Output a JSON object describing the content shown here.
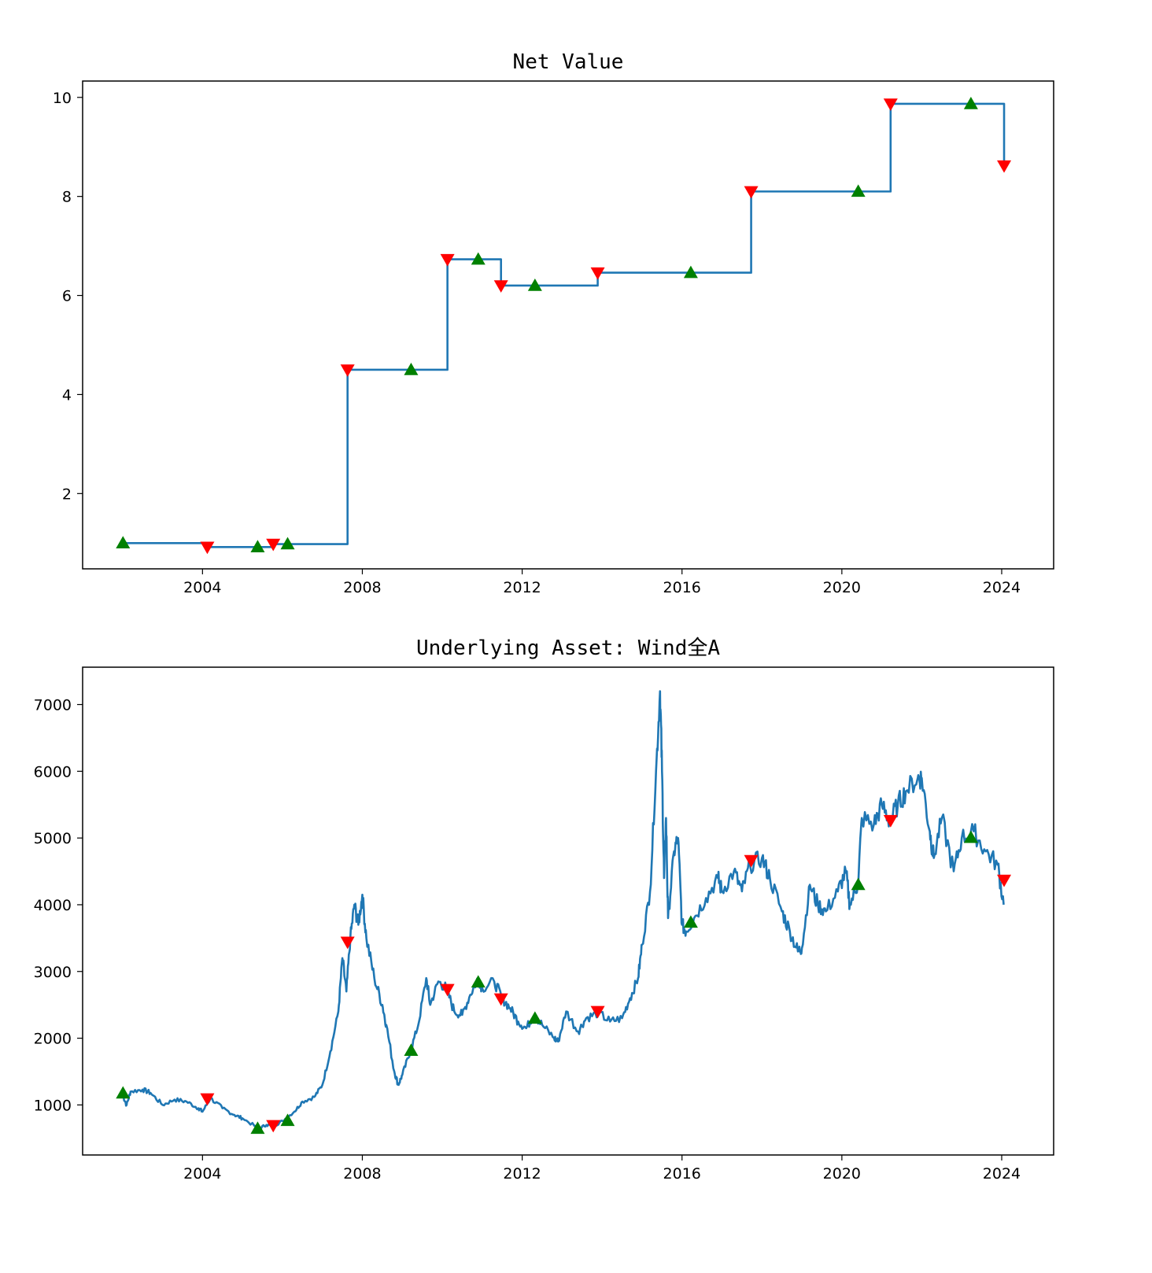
{
  "chart_data": [
    {
      "type": "line",
      "title": "Net Value",
      "xlabel": "",
      "ylabel": "",
      "xlim": [
        2001.0,
        2025.3
      ],
      "ylim": [
        0.48,
        10.33
      ],
      "xticks": [
        2004,
        2008,
        2012,
        2016,
        2020,
        2024
      ],
      "xtick_labels": [
        "2004",
        "2008",
        "2012",
        "2016",
        "2020",
        "2024"
      ],
      "yticks": [
        2,
        4,
        6,
        8,
        10
      ],
      "ytick_labels": [
        "2",
        "4",
        "6",
        "8",
        "10"
      ],
      "line_color": "#1f77b4",
      "drawstyle": "steps-post",
      "points": [
        {
          "x": 2002.01,
          "y": 1.0,
          "signal": "buy"
        },
        {
          "x": 2004.12,
          "y": 0.92,
          "signal": "sell"
        },
        {
          "x": 2005.38,
          "y": 0.92,
          "signal": "buy"
        },
        {
          "x": 2005.77,
          "y": 0.98,
          "signal": "sell"
        },
        {
          "x": 2006.13,
          "y": 0.98,
          "signal": "buy"
        },
        {
          "x": 2007.63,
          "y": 4.5,
          "signal": "sell"
        },
        {
          "x": 2009.22,
          "y": 4.5,
          "signal": "buy"
        },
        {
          "x": 2010.13,
          "y": 6.73,
          "signal": "sell"
        },
        {
          "x": 2010.9,
          "y": 6.73,
          "signal": "buy"
        },
        {
          "x": 2011.47,
          "y": 6.2,
          "signal": "sell"
        },
        {
          "x": 2012.32,
          "y": 6.2,
          "signal": "buy"
        },
        {
          "x": 2013.89,
          "y": 6.46,
          "signal": "sell"
        },
        {
          "x": 2016.22,
          "y": 6.46,
          "signal": "buy"
        },
        {
          "x": 2017.73,
          "y": 8.1,
          "signal": "sell"
        },
        {
          "x": 2020.41,
          "y": 8.1,
          "signal": "buy"
        },
        {
          "x": 2021.22,
          "y": 9.87,
          "signal": "sell"
        },
        {
          "x": 2023.23,
          "y": 9.87,
          "signal": "buy"
        },
        {
          "x": 2024.06,
          "y": 8.62,
          "signal": "sell"
        }
      ],
      "buy_color": "#008000",
      "sell_color": "#ff0000"
    },
    {
      "type": "line",
      "title": "Underlying Asset: Wind全A",
      "xlabel": "",
      "ylabel": "",
      "xlim": [
        2001.0,
        2025.3
      ],
      "ylim": [
        250,
        7560
      ],
      "xticks": [
        2004,
        2008,
        2012,
        2016,
        2020,
        2024
      ],
      "xtick_labels": [
        "2004",
        "2008",
        "2012",
        "2016",
        "2020",
        "2024"
      ],
      "yticks": [
        1000,
        2000,
        3000,
        4000,
        5000,
        6000,
        7000
      ],
      "ytick_labels": [
        "1000",
        "2000",
        "3000",
        "4000",
        "5000",
        "6000",
        "7000"
      ],
      "line_color": "#1f77b4",
      "series": [
        [
          2002.0,
          1150
        ],
        [
          2002.1,
          1000
        ],
        [
          2002.2,
          1200
        ],
        [
          2002.5,
          1230
        ],
        [
          2002.7,
          1180
        ],
        [
          2003.0,
          1000
        ],
        [
          2003.3,
          1080
        ],
        [
          2003.6,
          1050
        ],
        [
          2003.9,
          950
        ],
        [
          2004.0,
          900
        ],
        [
          2004.2,
          1100
        ],
        [
          2004.5,
          950
        ],
        [
          2004.8,
          850
        ],
        [
          2005.0,
          800
        ],
        [
          2005.4,
          650
        ],
        [
          2005.6,
          700
        ],
        [
          2005.8,
          690
        ],
        [
          2006.0,
          760
        ],
        [
          2006.3,
          900
        ],
        [
          2006.5,
          1050
        ],
        [
          2006.8,
          1120
        ],
        [
          2007.0,
          1300
        ],
        [
          2007.2,
          1800
        ],
        [
          2007.4,
          2400
        ],
        [
          2007.5,
          3200
        ],
        [
          2007.6,
          2700
        ],
        [
          2007.7,
          3500
        ],
        [
          2007.8,
          4000
        ],
        [
          2007.9,
          3700
        ],
        [
          2008.0,
          4150
        ],
        [
          2008.1,
          3500
        ],
        [
          2008.3,
          2900
        ],
        [
          2008.5,
          2500
        ],
        [
          2008.6,
          2200
        ],
        [
          2008.8,
          1500
        ],
        [
          2008.9,
          1300
        ],
        [
          2009.0,
          1450
        ],
        [
          2009.2,
          1800
        ],
        [
          2009.4,
          2200
        ],
        [
          2009.6,
          2900
        ],
        [
          2009.7,
          2500
        ],
        [
          2009.9,
          2850
        ],
        [
          2010.1,
          2750
        ],
        [
          2010.3,
          2400
        ],
        [
          2010.5,
          2350
        ],
        [
          2010.7,
          2650
        ],
        [
          2010.9,
          2900
        ],
        [
          2011.0,
          2750
        ],
        [
          2011.3,
          2850
        ],
        [
          2011.5,
          2600
        ],
        [
          2011.7,
          2450
        ],
        [
          2011.9,
          2250
        ],
        [
          2012.1,
          2150
        ],
        [
          2012.3,
          2350
        ],
        [
          2012.5,
          2200
        ],
        [
          2012.8,
          2000
        ],
        [
          2012.9,
          1950
        ],
        [
          2013.1,
          2400
        ],
        [
          2013.4,
          2100
        ],
        [
          2013.6,
          2300
        ],
        [
          2013.9,
          2380
        ],
        [
          2014.2,
          2250
        ],
        [
          2014.5,
          2300
        ],
        [
          2014.7,
          2600
        ],
        [
          2014.9,
          2900
        ],
        [
          2015.0,
          3400
        ],
        [
          2015.2,
          4200
        ],
        [
          2015.35,
          6000
        ],
        [
          2015.45,
          7200
        ],
        [
          2015.5,
          6000
        ],
        [
          2015.55,
          4400
        ],
        [
          2015.6,
          5300
        ],
        [
          2015.65,
          3800
        ],
        [
          2015.8,
          4800
        ],
        [
          2015.9,
          5000
        ],
        [
          2016.0,
          3700
        ],
        [
          2016.1,
          3600
        ],
        [
          2016.3,
          3800
        ],
        [
          2016.6,
          4100
        ],
        [
          2016.9,
          4400
        ],
        [
          2017.0,
          4200
        ],
        [
          2017.3,
          4500
        ],
        [
          2017.5,
          4200
        ],
        [
          2017.7,
          4600
        ],
        [
          2018.0,
          4700
        ],
        [
          2018.2,
          4400
        ],
        [
          2018.5,
          3900
        ],
        [
          2018.7,
          3600
        ],
        [
          2018.9,
          3300
        ],
        [
          2019.0,
          3350
        ],
        [
          2019.2,
          4300
        ],
        [
          2019.4,
          4000
        ],
        [
          2019.6,
          3900
        ],
        [
          2019.9,
          4200
        ],
        [
          2020.1,
          4500
        ],
        [
          2020.2,
          4000
        ],
        [
          2020.4,
          4300
        ],
        [
          2020.5,
          5300
        ],
        [
          2020.8,
          5200
        ],
        [
          2021.0,
          5500
        ],
        [
          2021.2,
          5250
        ],
        [
          2021.4,
          5500
        ],
        [
          2021.6,
          5700
        ],
        [
          2021.9,
          5900
        ],
        [
          2022.0,
          5900
        ],
        [
          2022.2,
          5100
        ],
        [
          2022.3,
          4700
        ],
        [
          2022.5,
          5300
        ],
        [
          2022.8,
          4500
        ],
        [
          2023.0,
          5000
        ],
        [
          2023.3,
          5100
        ],
        [
          2023.6,
          4800
        ],
        [
          2023.9,
          4600
        ],
        [
          2024.05,
          4000
        ]
      ],
      "markers": [
        {
          "x": 2002.01,
          "y": 1176,
          "signal": "buy"
        },
        {
          "x": 2004.12,
          "y": 1094,
          "signal": "sell"
        },
        {
          "x": 2005.38,
          "y": 646,
          "signal": "buy"
        },
        {
          "x": 2005.77,
          "y": 693,
          "signal": "sell"
        },
        {
          "x": 2006.13,
          "y": 764,
          "signal": "buy"
        },
        {
          "x": 2007.63,
          "y": 3442,
          "signal": "sell"
        },
        {
          "x": 2009.22,
          "y": 1815,
          "signal": "buy"
        },
        {
          "x": 2010.13,
          "y": 2734,
          "signal": "sell"
        },
        {
          "x": 2010.9,
          "y": 2840,
          "signal": "buy"
        },
        {
          "x": 2011.47,
          "y": 2592,
          "signal": "sell"
        },
        {
          "x": 2012.32,
          "y": 2297,
          "signal": "buy"
        },
        {
          "x": 2013.89,
          "y": 2403,
          "signal": "sell"
        },
        {
          "x": 2016.22,
          "y": 3735,
          "signal": "buy"
        },
        {
          "x": 2017.73,
          "y": 4666,
          "signal": "sell"
        },
        {
          "x": 2020.41,
          "y": 4300,
          "signal": "buy"
        },
        {
          "x": 2021.22,
          "y": 5266,
          "signal": "sell"
        },
        {
          "x": 2023.23,
          "y": 5006,
          "signal": "buy"
        },
        {
          "x": 2024.06,
          "y": 4370,
          "signal": "sell"
        }
      ],
      "buy_color": "#008000",
      "sell_color": "#ff0000"
    }
  ]
}
